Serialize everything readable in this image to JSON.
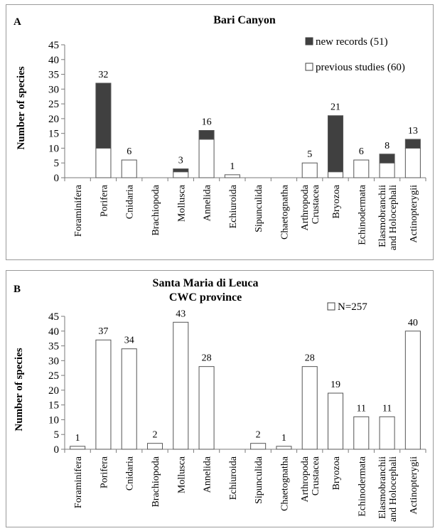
{
  "chart_data": [
    {
      "type": "bar",
      "stacked": true,
      "panel_letter": "A",
      "title": "Bari Canyon",
      "ylabel": "Number of species",
      "ylim": [
        0,
        45
      ],
      "yticks": [
        0,
        5,
        10,
        15,
        20,
        25,
        30,
        35,
        40,
        45
      ],
      "grid": false,
      "legend_position": "top-right",
      "categories": [
        "Foraminifera",
        "Porifera",
        "Cnidaria",
        "Brachiopoda",
        "Mollusca",
        "Annelida",
        "Echiuroida",
        "Sipunculida",
        "Chaetognatha",
        "Arthropoda\nCrustacea",
        "Bryozoa",
        "Echinodermata",
        "Elasmobranchii\nand Holocephali",
        "Actinopterygii"
      ],
      "series": [
        {
          "name": "previous studies (60)",
          "values": [
            0,
            10,
            6,
            0,
            2,
            13,
            1,
            0,
            0,
            5,
            2,
            6,
            5,
            10
          ],
          "color": "#ffffff"
        },
        {
          "name": "new records (51)",
          "values": [
            0,
            22,
            0,
            0,
            1,
            3,
            0,
            0,
            0,
            0,
            19,
            0,
            3,
            3
          ],
          "color": "#404040"
        }
      ],
      "data_labels": [
        "",
        "32",
        "6",
        "",
        "3",
        "16",
        "1",
        "",
        "",
        "5",
        "21",
        "6",
        "8",
        "13"
      ]
    },
    {
      "type": "bar",
      "panel_letter": "B",
      "title": "Santa Maria di Leuca",
      "subtitle": "CWC province",
      "ylabel": "Number of species",
      "ylim": [
        0,
        45
      ],
      "yticks": [
        0,
        5,
        10,
        15,
        20,
        25,
        30,
        35,
        40,
        45
      ],
      "grid": false,
      "legend_position": "top-right",
      "categories": [
        "Foraminifera",
        "Porifera",
        "Cnidaria",
        "Brachiopoda",
        "Mollusca",
        "Annelida",
        "Echiuroida",
        "Sipunculida",
        "Chaetognatha",
        "Arthropoda\nCrustacea",
        "Bryozoa",
        "Echinodermata",
        "Elasmobranchii\nand Holocephali",
        "Actinopterygii"
      ],
      "series": [
        {
          "name": "N=257",
          "values": [
            1,
            37,
            34,
            2,
            43,
            28,
            0,
            2,
            1,
            28,
            19,
            11,
            11,
            40
          ],
          "color": "#ffffff"
        }
      ],
      "data_labels": [
        "1",
        "37",
        "34",
        "2",
        "43",
        "28",
        "",
        "2",
        "1",
        "28",
        "19",
        "11",
        "11",
        "40"
      ]
    }
  ]
}
